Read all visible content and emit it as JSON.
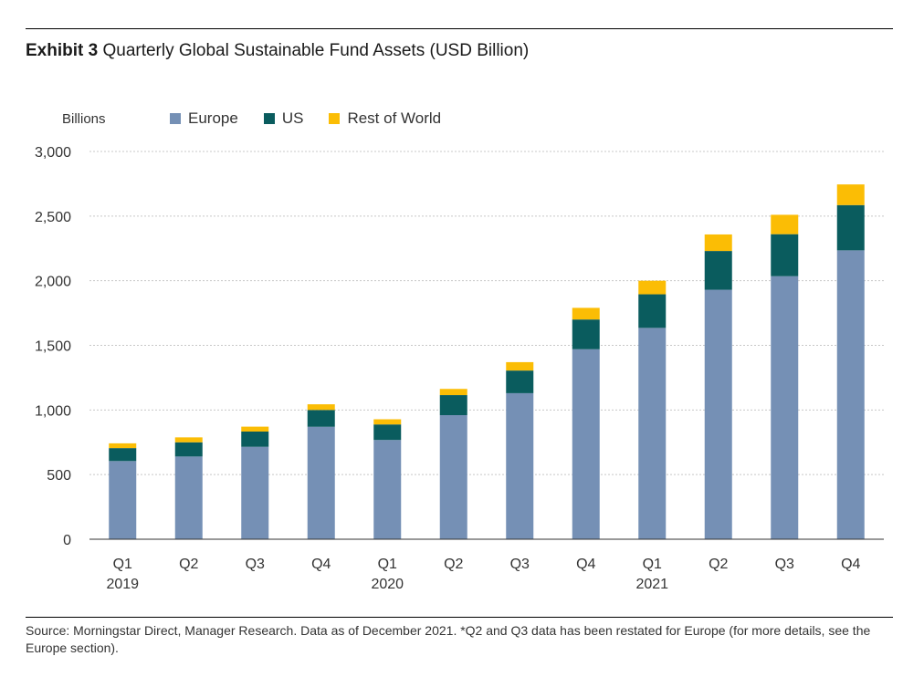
{
  "header": {
    "exhibit_label": "Exhibit 3",
    "title_text": "Quarterly Global Sustainable Fund Assets (USD Billion)"
  },
  "chart_data": {
    "type": "bar",
    "stacked": true,
    "title": "Exhibit 3 Quarterly Global Sustainable Fund Assets (USD Billion)",
    "ylabel": "Billions",
    "ylim": [
      0,
      3000
    ],
    "yticks": [
      0,
      500,
      1000,
      1500,
      2000,
      2500,
      3000
    ],
    "ytick_labels": [
      "0",
      "500",
      "1,000",
      "1,500",
      "2,000",
      "2,500",
      "3,000"
    ],
    "grid": true,
    "legend_position": "top-left",
    "categories": [
      "Q1 2019",
      "Q2 2019",
      "Q3 2019",
      "Q4 2019",
      "Q1 2020",
      "Q2 2020",
      "Q3 2020",
      "Q4 2020",
      "Q1 2021",
      "Q2 2021",
      "Q3 2021",
      "Q4 2021"
    ],
    "category_labels": [
      {
        "quarter": "Q1",
        "year": "2019"
      },
      {
        "quarter": "Q2",
        "year": ""
      },
      {
        "quarter": "Q3",
        "year": ""
      },
      {
        "quarter": "Q4",
        "year": ""
      },
      {
        "quarter": "Q1",
        "year": "2020"
      },
      {
        "quarter": "Q2",
        "year": ""
      },
      {
        "quarter": "Q3",
        "year": ""
      },
      {
        "quarter": "Q4",
        "year": ""
      },
      {
        "quarter": "Q1",
        "year": "2021"
      },
      {
        "quarter": "Q2",
        "year": ""
      },
      {
        "quarter": "Q3",
        "year": ""
      },
      {
        "quarter": "Q4",
        "year": ""
      }
    ],
    "series": [
      {
        "name": "Europe",
        "color": "#7590b5",
        "values": [
          605,
          640,
          715,
          870,
          768,
          960,
          1130,
          1470,
          1635,
          1930,
          2035,
          2235
        ]
      },
      {
        "name": "US",
        "color": "#0a5c5e",
        "values": [
          100,
          110,
          118,
          130,
          120,
          155,
          175,
          230,
          260,
          300,
          325,
          350
        ]
      },
      {
        "name": "Rest of World",
        "color": "#fbbd05",
        "values": [
          37,
          38,
          38,
          44,
          40,
          48,
          65,
          90,
          105,
          128,
          150,
          160
        ]
      }
    ]
  },
  "footer": {
    "source_text": "Source: Morningstar Direct, Manager Research. Data as of December 2021. *Q2 and Q3 data has been restated for Europe (for more details, see the Europe section)."
  }
}
